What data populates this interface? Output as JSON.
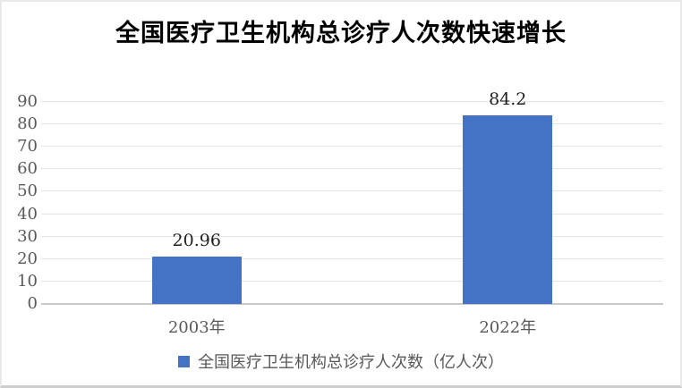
{
  "chart_data": {
    "type": "bar",
    "title": "全国医疗卫生机构总诊疗人次数快速增长",
    "categories": [
      "2003年",
      "2022年"
    ],
    "series": [
      {
        "name": "全国医疗卫生机构总诊疗人次数（亿人次）",
        "values": [
          20.96,
          84.2
        ]
      }
    ],
    "data_labels": [
      "20.96",
      "84.2"
    ],
    "xlabel": "",
    "ylabel": "",
    "ylim": [
      0,
      90
    ],
    "yticks": [
      0,
      10,
      20,
      30,
      40,
      50,
      60,
      70,
      80,
      90
    ],
    "grid": "horizontal",
    "legend_position": "bottom",
    "colors": {
      "bar": "#4472C4",
      "gridline": "#E4E4E4",
      "axis_line": "#C9C9C9",
      "axis_label": "#595959",
      "data_label": "#1F1F1F",
      "title": "#000000",
      "legend_text": "#595959"
    }
  }
}
